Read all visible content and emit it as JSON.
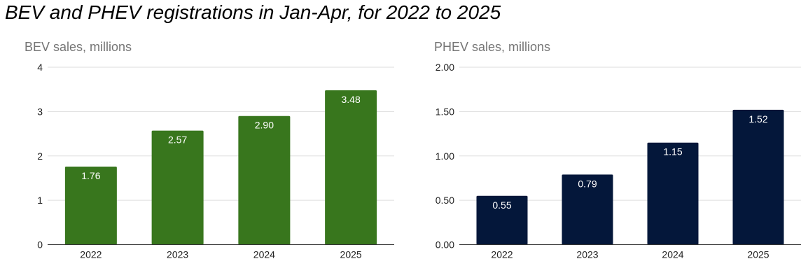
{
  "title": "BEV and PHEV registrations in Jan-Apr, for 2022 to 2025",
  "chart_data": [
    {
      "type": "bar",
      "ylabel": "BEV sales, millions",
      "xlabel": "",
      "categories": [
        "2022",
        "2023",
        "2024",
        "2025"
      ],
      "values": [
        1.76,
        2.57,
        2.9,
        3.48
      ],
      "data_labels": [
        "1.76",
        "2.57",
        "2.90",
        "3.48"
      ],
      "ylim": [
        0,
        4
      ],
      "yticks": [
        "0",
        "1",
        "2",
        "3",
        "4"
      ],
      "color": "#38761d",
      "grid": true
    },
    {
      "type": "bar",
      "ylabel": "PHEV sales, millions",
      "xlabel": "",
      "categories": [
        "2022",
        "2023",
        "2024",
        "2025"
      ],
      "values": [
        0.55,
        0.79,
        1.15,
        1.52
      ],
      "data_labels": [
        "0.55",
        "0.79",
        "1.15",
        "1.52"
      ],
      "ylim": [
        0,
        2
      ],
      "yticks": [
        "0.00",
        "0.50",
        "1.00",
        "1.50",
        "2.00"
      ],
      "color": "#04173a",
      "grid": true
    }
  ]
}
